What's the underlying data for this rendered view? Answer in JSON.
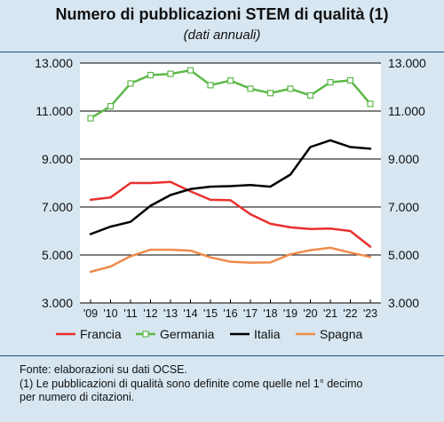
{
  "header": {
    "title": "Numero di pubblicazioni STEM di qualità (1)",
    "subtitle": "(dati annuali)"
  },
  "footer": {
    "source": "Fonte: elaborazioni su dati OCSE.",
    "note_line1": "(1) Le pubblicazioni di qualità sono definite come quelle nel 1° decimo",
    "note_line2": "per numero di citazioni."
  },
  "chart_data": {
    "type": "line",
    "x": [
      "'09",
      "'10",
      "'11",
      "'12",
      "'13",
      "'14",
      "'15",
      "'16",
      "'17",
      "'18",
      "'19",
      "'20",
      "'21",
      "'22",
      "'23"
    ],
    "ylim": [
      3000,
      13000
    ],
    "yticks": [
      3000,
      5000,
      7000,
      9000,
      11000,
      13000
    ],
    "ytick_labels": [
      "3.000",
      "5.000",
      "7.000",
      "9.000",
      "11.000",
      "13.000"
    ],
    "y_axis": "both-sides",
    "grid": "horizontal",
    "legend_position": "bottom",
    "series": [
      {
        "name": "Francia",
        "color": "#e8312f",
        "marker": "none",
        "values": [
          7300,
          7400,
          8000,
          8000,
          8050,
          7650,
          7300,
          7280,
          6700,
          6300,
          6150,
          6080,
          6100,
          6000,
          5350
        ]
      },
      {
        "name": "Germania",
        "color": "#5cb848",
        "marker": "hollow-square",
        "values": [
          10700,
          11200,
          12150,
          12500,
          12550,
          12700,
          12080,
          12270,
          11930,
          11750,
          11930,
          11650,
          12200,
          12280,
          11300
        ]
      },
      {
        "name": "Italia",
        "color": "#000000",
        "marker": "none",
        "values": [
          5870,
          6180,
          6380,
          7050,
          7500,
          7750,
          7850,
          7870,
          7920,
          7850,
          8350,
          9500,
          9780,
          9500,
          9430
        ]
      },
      {
        "name": "Spagna",
        "color": "#ee8b4a",
        "marker": "none",
        "values": [
          4300,
          4520,
          4950,
          5220,
          5220,
          5180,
          4900,
          4720,
          4680,
          4690,
          5030,
          5200,
          5300,
          5100,
          4920
        ]
      }
    ]
  }
}
